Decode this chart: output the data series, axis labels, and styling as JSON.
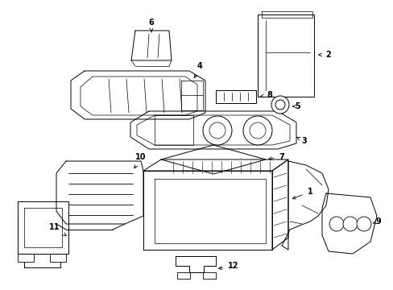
{
  "bg_color": "#ffffff",
  "line_color": "#000000",
  "lw": 0.7,
  "figsize": [
    4.89,
    3.6
  ],
  "dpi": 100
}
